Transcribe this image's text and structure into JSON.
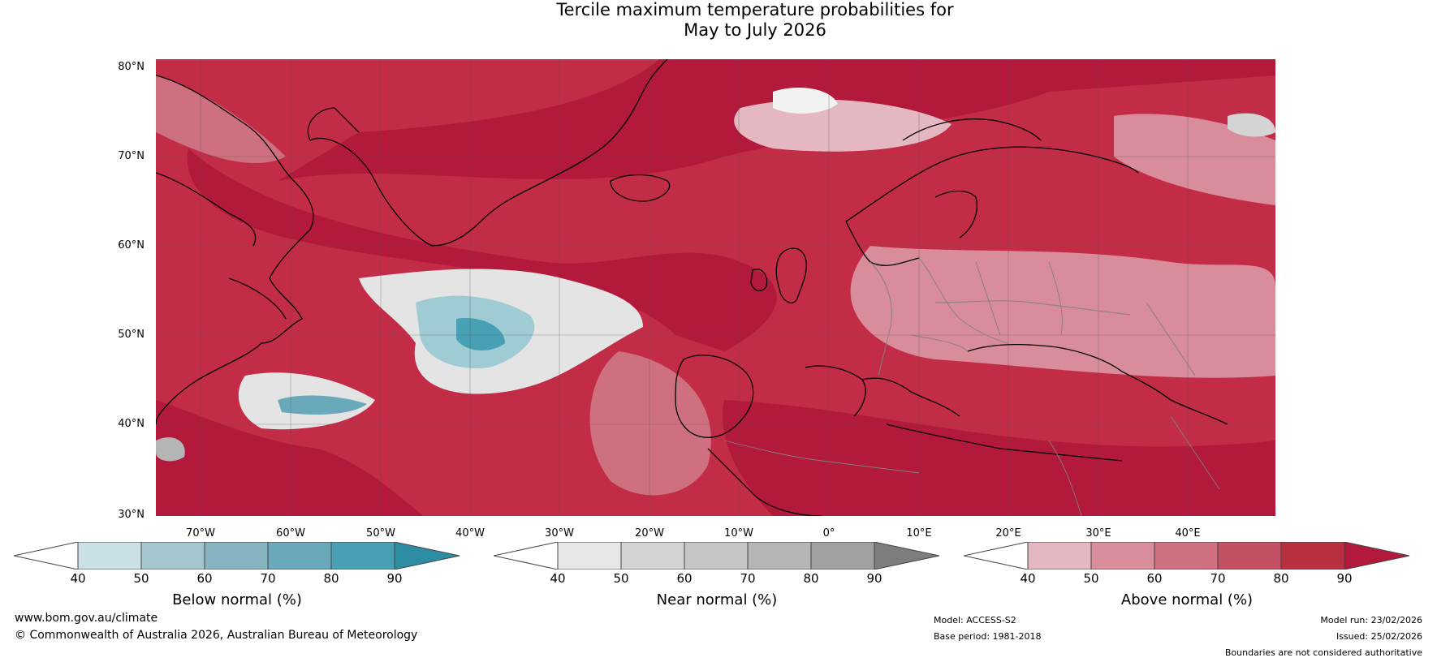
{
  "title": {
    "line1": "Tercile maximum temperature probabilities for",
    "line2": "May to July 2026"
  },
  "map": {
    "latitude_labels": [
      "80°N",
      "70°N",
      "60°N",
      "50°N",
      "40°N",
      "30°N"
    ],
    "longitude_labels": [
      "70°W",
      "60°W",
      "50°W",
      "40°W",
      "30°W",
      "20°W",
      "10°W",
      "0°",
      "10°E",
      "20°E",
      "30°E",
      "40°E"
    ],
    "colors": {
      "above_base": "#c22c47",
      "near_normal_patch": "#e4e4e4",
      "below_normal_patch": "#9fcbd4",
      "land_outline": "#000000",
      "country_border": "#808080",
      "grid": "#555555"
    }
  },
  "colorbars": [
    {
      "name": "below-normal",
      "label": "Below normal (%)",
      "ticks": [
        "40",
        "50",
        "60",
        "70",
        "80",
        "90"
      ],
      "colors": [
        "#ffffff",
        "#c9e0e7",
        "#a6c6ce",
        "#88b3c1",
        "#6aa9b9",
        "#47a0b3",
        "#2d8ea3"
      ]
    },
    {
      "name": "near-normal",
      "label": "Near normal (%)",
      "ticks": [
        "40",
        "50",
        "60",
        "70",
        "80",
        "90"
      ],
      "colors": [
        "#ffffff",
        "#e6e6e6",
        "#d4d4d4",
        "#c6c6c6",
        "#b5b5b5",
        "#a0a0a0",
        "#7d7d7d"
      ]
    },
    {
      "name": "above-normal",
      "label": "Above normal (%)",
      "ticks": [
        "40",
        "50",
        "60",
        "70",
        "80",
        "90"
      ],
      "colors": [
        "#ffffff",
        "#e5b7c0",
        "#d98c99",
        "#ce707f",
        "#c45162",
        "#b8303f",
        "#b3193a"
      ]
    }
  ],
  "footer": {
    "website": "www.bom.gov.au/climate",
    "copyright": "© Commonwealth of Australia 2026, Australian Bureau of Meteorology",
    "model": "Model: ACCESS-S2",
    "base_period": "Base period: 1981-2018",
    "model_run": "Model run: 23/02/2026",
    "issued": "Issued: 25/02/2026",
    "disclaimer": "Boundaries are not considered authoritative"
  }
}
